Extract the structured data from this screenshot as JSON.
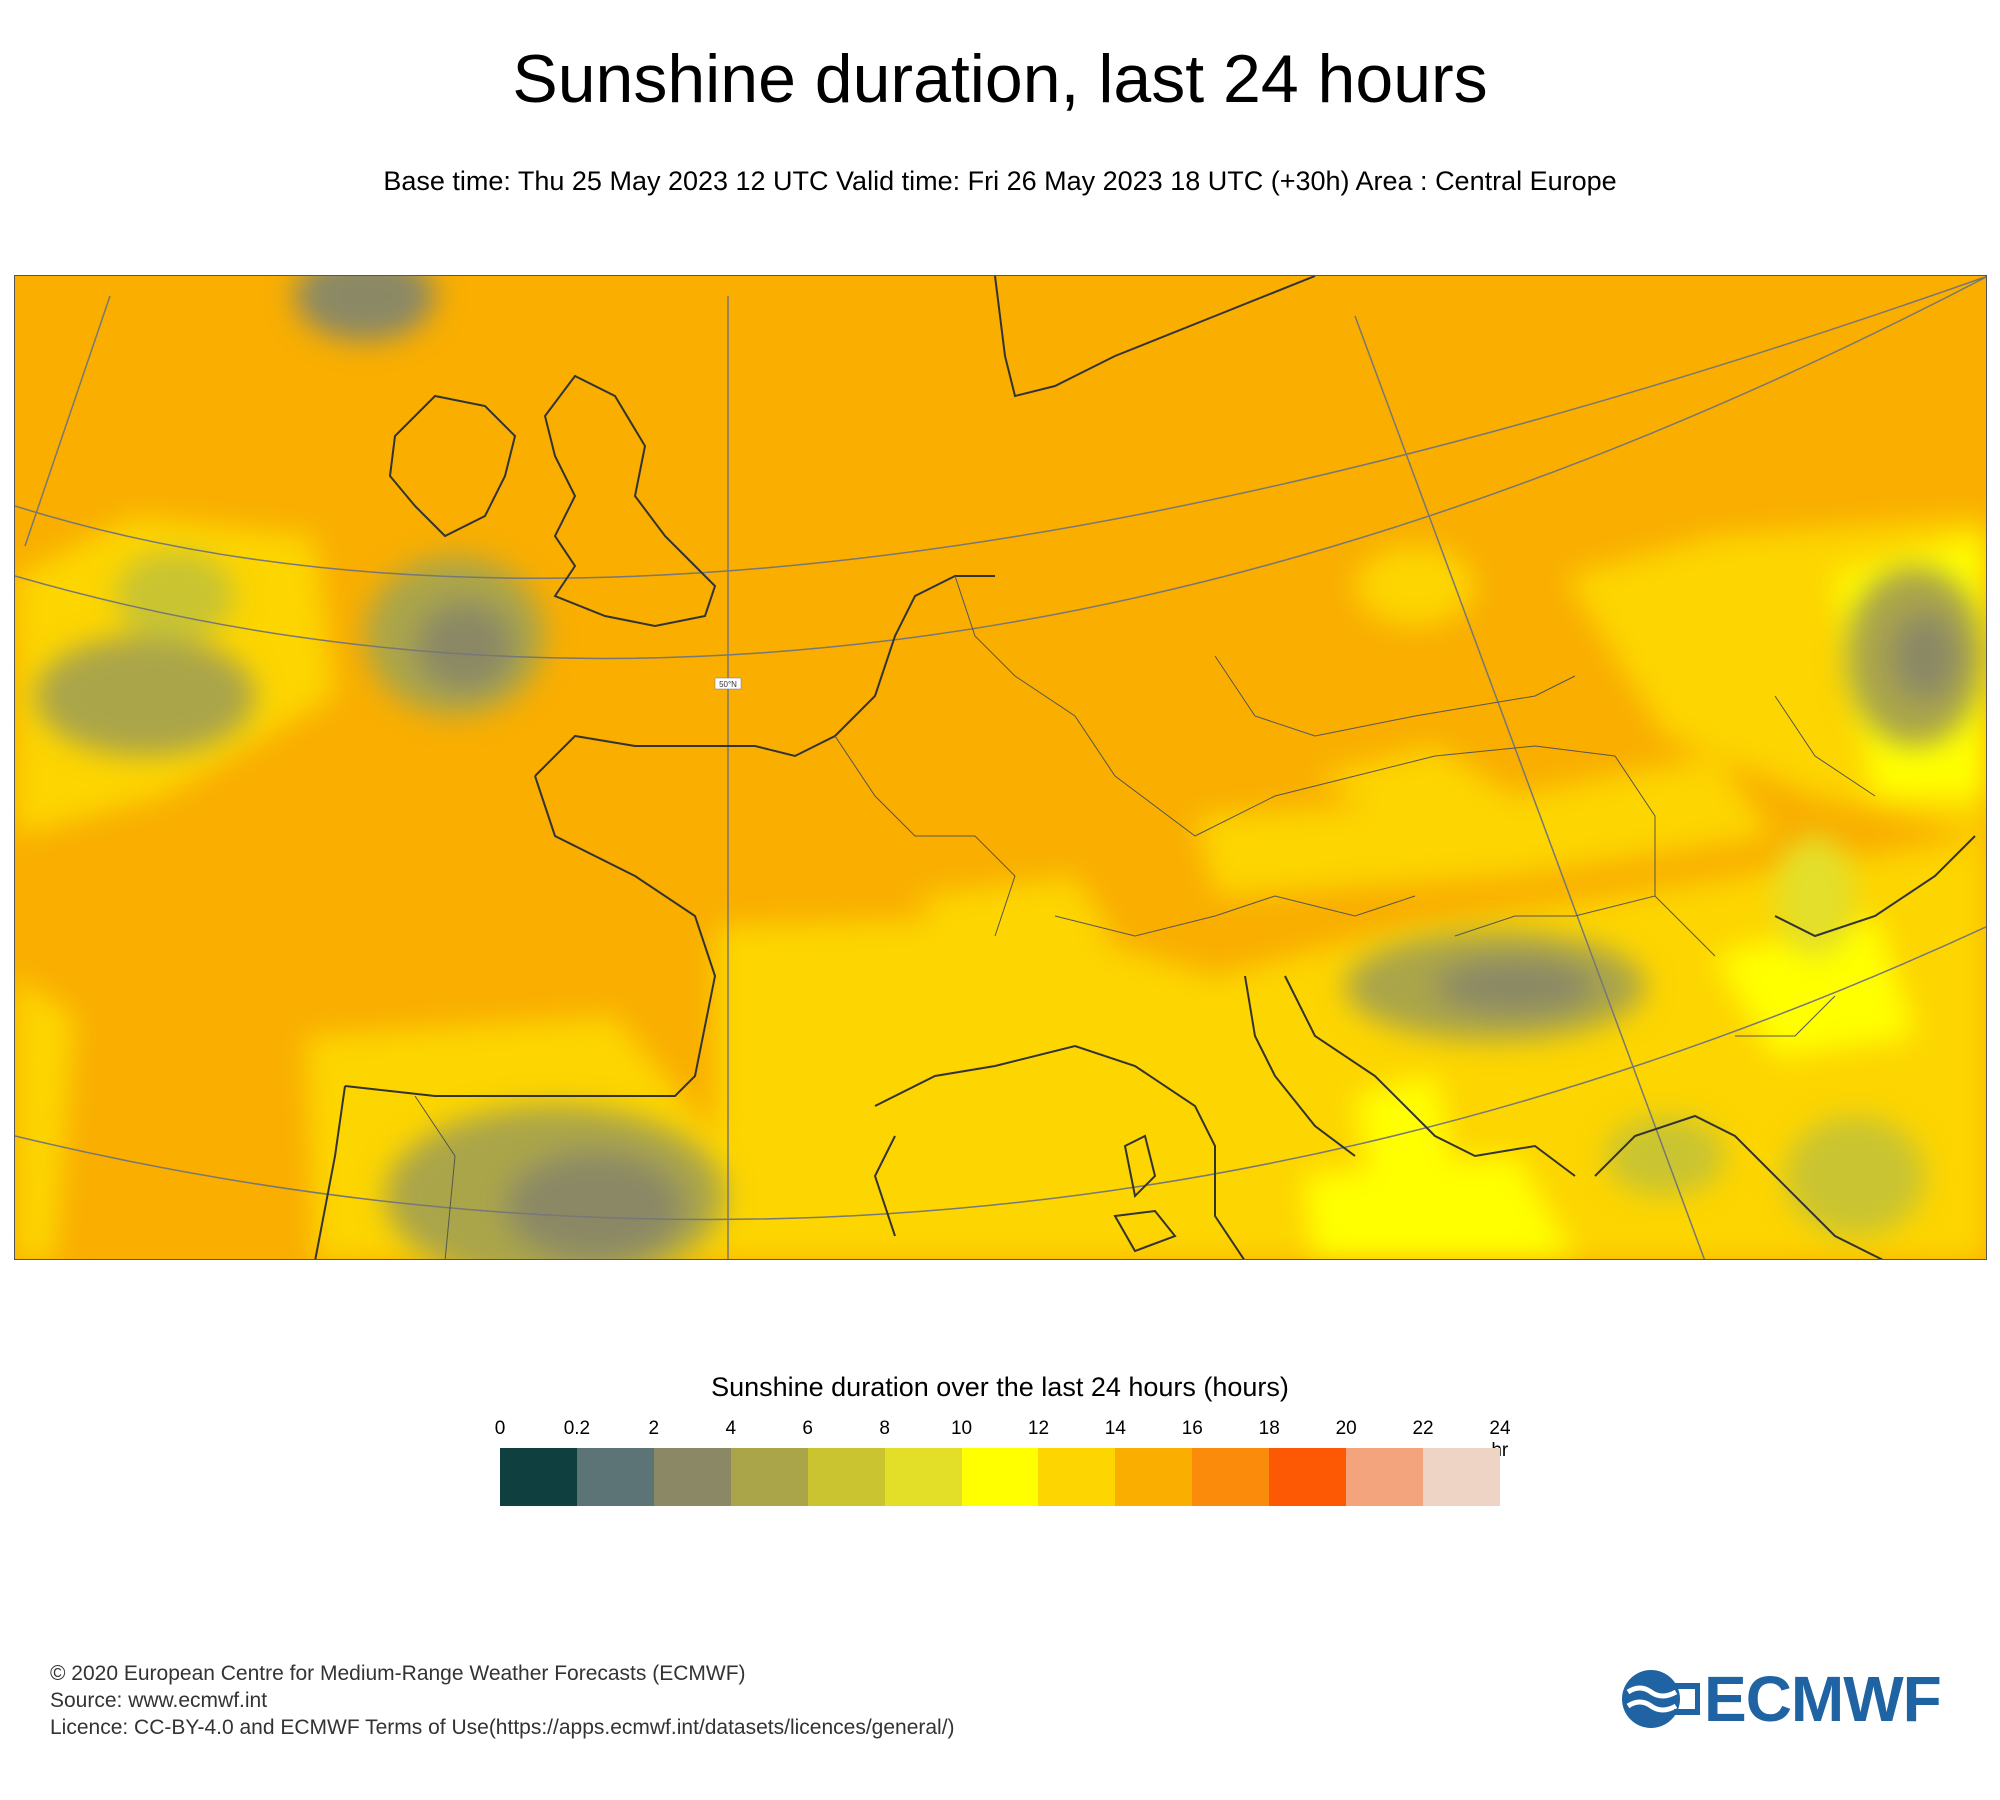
{
  "title": "Sunshine duration, last 24 hours",
  "subtitle": "Base time: Thu 25 May 2023 12 UTC Valid time: Fri 26 May 2023 18 UTC (+30h) Area : Central Europe",
  "map": {
    "region": "Central Europe",
    "graticule_label": "50°N",
    "colors": {
      "ocean_dominant": "#f9ae00",
      "land_dominant": "#fdd500",
      "cloudy_grey": "#8b8965",
      "olive": "#aaa548",
      "coast_line": "#333333"
    }
  },
  "legend": {
    "title": "Sunshine duration over the last 24 hours (hours)",
    "unit": "-hr",
    "ticks": [
      "0",
      "0.2",
      "2",
      "4",
      "6",
      "8",
      "10",
      "12",
      "14",
      "16",
      "18",
      "20",
      "22",
      "24"
    ],
    "colors": [
      "#0f403f",
      "#5c7476",
      "#8b8965",
      "#aaa548",
      "#c9c430",
      "#e3df29",
      "#ffff00",
      "#fdd500",
      "#f9ae00",
      "#fb8b0a",
      "#fd5804",
      "#f3a47c",
      "#eed4c4"
    ]
  },
  "footer": {
    "copyright": "© 2020 European Centre for Medium-Range Weather Forecasts (ECMWF)",
    "source": "Source: www.ecmwf.int",
    "licence": "Licence: CC-BY-4.0 and ECMWF Terms of Use(https://apps.ecmwf.int/datasets/licences/general/)"
  },
  "logo": {
    "text": "ECMWF",
    "color": "#1f63a3"
  }
}
